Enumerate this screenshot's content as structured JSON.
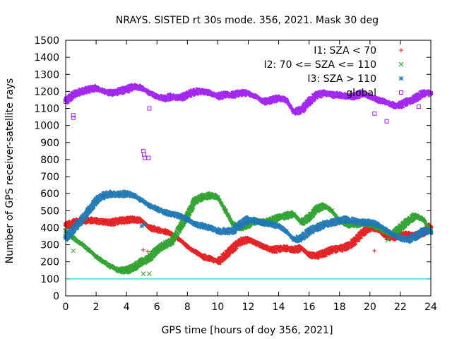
{
  "chart_data": {
    "type": "scatter",
    "title": "NRAYS. SISTED rt 30s mode. 356, 2021. Mask 30 deg",
    "xlabel": "GPS time [hours of doy 356, 2021]",
    "ylabel": "Number of GPS receiver-satellite rays",
    "xlim": [
      0,
      24
    ],
    "ylim": [
      0,
      1500
    ],
    "xticks": [
      "0",
      "2",
      "4",
      "6",
      "8",
      "10",
      "12",
      "14",
      "16",
      "18",
      "20",
      "22",
      "24"
    ],
    "yticks": [
      "0",
      "100",
      "200",
      "300",
      "400",
      "500",
      "600",
      "700",
      "800",
      "900",
      "1000",
      "1100",
      "1200",
      "1300",
      "1400",
      "1500"
    ],
    "threshold_line": {
      "y": 100,
      "color": "#00c8d0"
    },
    "legend_position": "top-right",
    "series": [
      {
        "name": "I1: SZA < 70",
        "color": "#e41a1c",
        "marker": "+",
        "x": [
          0,
          0.5,
          1,
          1.5,
          2,
          2.5,
          3,
          3.5,
          4,
          4.5,
          5,
          5.5,
          6,
          6.5,
          7,
          7.5,
          8,
          8.5,
          9,
          9.5,
          10,
          10.5,
          11,
          11.5,
          12,
          12.5,
          13,
          13.5,
          14,
          14.5,
          15,
          15.5,
          16,
          16.5,
          17,
          17.5,
          18,
          18.5,
          19,
          19.5,
          20,
          20.5,
          21,
          21.5,
          22,
          22.5,
          23,
          23.5,
          24
        ],
        "values": [
          410,
          430,
          440,
          445,
          440,
          435,
          430,
          440,
          445,
          450,
          440,
          400,
          390,
          380,
          360,
          330,
          290,
          260,
          230,
          220,
          200,
          240,
          280,
          320,
          330,
          310,
          290,
          270,
          275,
          280,
          270,
          280,
          240,
          235,
          250,
          270,
          275,
          290,
          320,
          370,
          400,
          390,
          350,
          345,
          350,
          360,
          350,
          370,
          410
        ],
        "outliers_x": [
          5.1,
          5.4,
          20.3,
          21.1
        ],
        "outliers": [
          270,
          260,
          265,
          330
        ]
      },
      {
        "name": "I2: 70 <= SZA <= 110",
        "color": "#2ca02c",
        "marker": "x",
        "x": [
          0,
          0.5,
          1,
          1.5,
          2,
          2.5,
          3,
          3.5,
          4,
          4.5,
          5,
          5.5,
          6,
          6.5,
          7,
          7.5,
          8,
          8.5,
          9,
          9.5,
          10,
          10.5,
          11,
          11.5,
          12,
          12.5,
          13,
          13.5,
          14,
          14.5,
          15,
          15.5,
          16,
          16.5,
          17,
          17.5,
          18,
          18.5,
          19,
          19.5,
          20,
          20.5,
          21,
          21.5,
          22,
          22.5,
          23,
          23.5,
          24
        ],
        "values": [
          380,
          340,
          310,
          270,
          230,
          200,
          170,
          150,
          150,
          170,
          200,
          220,
          270,
          300,
          320,
          400,
          470,
          560,
          580,
          590,
          580,
          500,
          420,
          400,
          420,
          440,
          430,
          440,
          460,
          470,
          480,
          430,
          460,
          510,
          530,
          500,
          440,
          420,
          420,
          430,
          420,
          400,
          380,
          360,
          400,
          440,
          470,
          450,
          380
        ],
        "outliers_x": [
          0.5,
          5.1,
          5.5,
          21.2
        ],
        "outliers": [
          265,
          130,
          130,
          330
        ]
      },
      {
        "name": "I3: SZA > 110",
        "color": "#1f77b4",
        "marker": "*",
        "x": [
          0,
          0.5,
          1,
          1.5,
          2,
          2.5,
          3,
          3.5,
          4,
          4.5,
          5,
          5.5,
          6,
          6.5,
          7,
          7.5,
          8,
          8.5,
          9,
          9.5,
          10,
          10.5,
          11,
          11.5,
          12,
          12.5,
          13,
          13.5,
          14,
          14.5,
          15,
          15.5,
          16,
          16.5,
          17,
          17.5,
          18,
          18.5,
          19,
          19.5,
          20,
          20.5,
          21,
          21.5,
          22,
          22.5,
          23,
          23.5,
          24
        ],
        "values": [
          340,
          390,
          440,
          500,
          560,
          590,
          600,
          595,
          600,
          590,
          560,
          530,
          510,
          490,
          480,
          470,
          450,
          420,
          410,
          400,
          380,
          380,
          380,
          420,
          450,
          440,
          430,
          420,
          410,
          380,
          330,
          340,
          380,
          400,
          420,
          430,
          440,
          450,
          440,
          430,
          430,
          420,
          390,
          360,
          340,
          330,
          350,
          380,
          380
        ],
        "outliers_x": [
          5.0,
          5.2
        ],
        "outliers": [
          410,
          420
        ]
      },
      {
        "name": "global",
        "color": "#a020f0",
        "marker": "square",
        "x": [
          0,
          0.5,
          1,
          1.5,
          2,
          2.5,
          3,
          3.5,
          4,
          4.5,
          5,
          5.5,
          6,
          6.5,
          7,
          7.5,
          8,
          8.5,
          9,
          9.5,
          10,
          10.5,
          11,
          11.5,
          12,
          12.5,
          13,
          13.5,
          14,
          14.5,
          15,
          15.5,
          16,
          16.5,
          17,
          17.5,
          18,
          18.5,
          19,
          19.5,
          20,
          20.5,
          21,
          21.5,
          22,
          22.5,
          23,
          23.5,
          24
        ],
        "values": [
          1140,
          1180,
          1200,
          1210,
          1220,
          1200,
          1190,
          1200,
          1210,
          1230,
          1220,
          1190,
          1170,
          1160,
          1170,
          1160,
          1180,
          1200,
          1200,
          1190,
          1170,
          1180,
          1180,
          1190,
          1190,
          1170,
          1140,
          1150,
          1160,
          1150,
          1080,
          1090,
          1140,
          1180,
          1190,
          1180,
          1180,
          1170,
          1170,
          1190,
          1170,
          1150,
          1140,
          1120,
          1120,
          1140,
          1160,
          1190,
          1190
        ],
        "outliers_x": [
          0.5,
          0.5,
          5.1,
          5.15,
          5.2,
          5.45,
          5.5,
          20.3,
          21.1,
          23.2
        ],
        "outliers": [
          1060,
          1045,
          850,
          830,
          810,
          810,
          1100,
          1070,
          1025,
          1110
        ]
      }
    ]
  }
}
